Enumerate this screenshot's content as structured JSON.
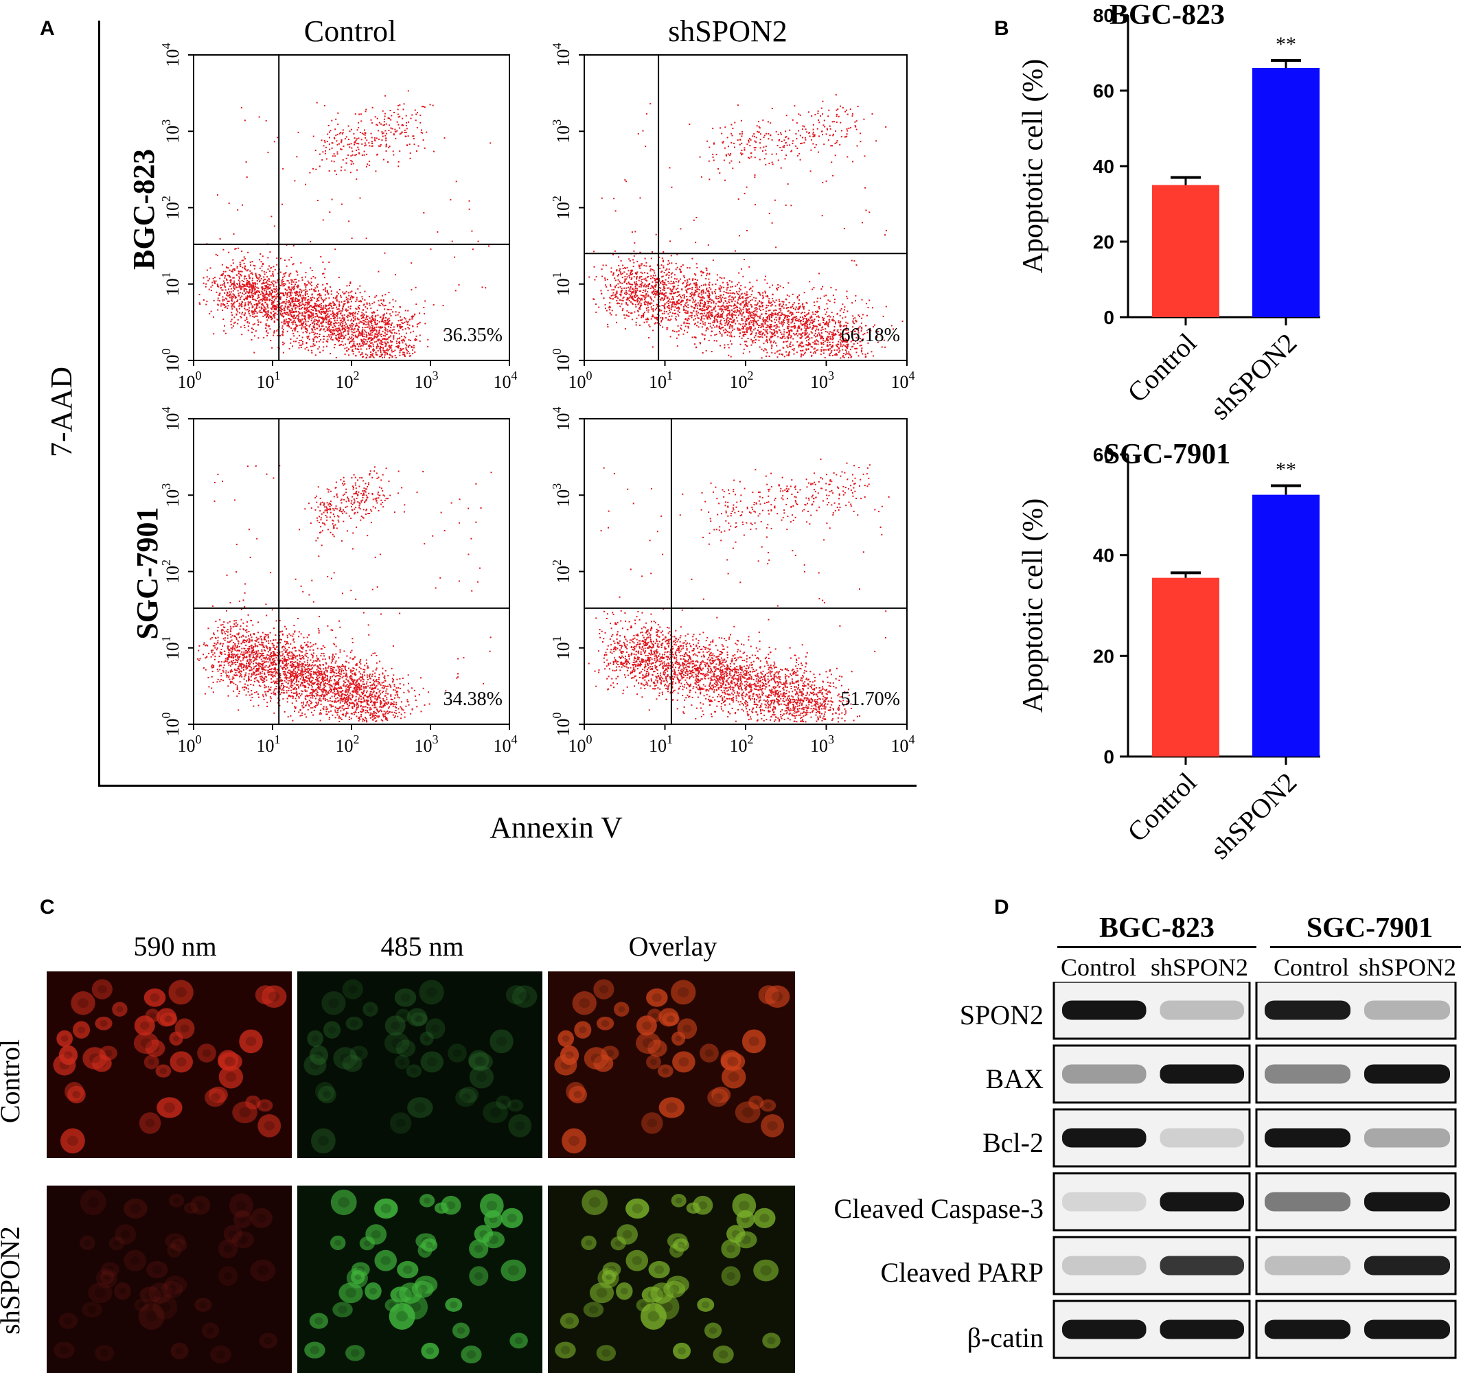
{
  "panels": {
    "a": "A",
    "b": "B",
    "c": "C",
    "d": "D"
  },
  "colors": {
    "control": "#ff3b30",
    "shspon2": "#0a0aff",
    "dots": "#e0141c"
  },
  "flow": {
    "columns": [
      "Control",
      "shSPON2"
    ],
    "rows": [
      "BGC-823",
      "SGC-7901"
    ],
    "y_axis_label": "7-AAD",
    "x_axis_label": "Annexin V",
    "tick_labels": [
      "0",
      "1",
      "2",
      "3",
      "4"
    ],
    "plots": [
      {
        "percent": "36.35%"
      },
      {
        "percent": "66.18%"
      },
      {
        "percent": "34.38%"
      },
      {
        "percent": "51.70%"
      }
    ]
  },
  "chart_data": [
    {
      "type": "bar",
      "title": "BGC-823",
      "xlabel": "",
      "ylabel": "Apoptotic cell (%)",
      "categories": [
        "Control",
        "shSPON2"
      ],
      "values": [
        35,
        66
      ],
      "errors": [
        2,
        2
      ],
      "ylim": [
        0,
        80
      ],
      "yticks": [
        0,
        20,
        40,
        60,
        80
      ],
      "annotations": [
        "",
        "**"
      ]
    },
    {
      "type": "bar",
      "title": "SGC-7901",
      "xlabel": "",
      "ylabel": "Apoptotic cell (%)",
      "categories": [
        "Control",
        "shSPON2"
      ],
      "values": [
        35.5,
        52
      ],
      "errors": [
        1,
        1.8
      ],
      "ylim": [
        0,
        60
      ],
      "yticks": [
        0,
        20,
        40,
        60
      ],
      "annotations": [
        "",
        "**"
      ]
    }
  ],
  "fluorescence": {
    "columns": [
      "590 nm",
      "485 nm",
      "Overlay"
    ],
    "rows": [
      "Control",
      "shSPON2"
    ]
  },
  "western": {
    "cell_lines": [
      "BGC-823",
      "SGC-7901"
    ],
    "lanes": [
      "Control",
      "shSPON2"
    ],
    "proteins": [
      "SPON2",
      "BAX",
      "Bcl-2",
      "Cleaved Caspase-3",
      "Cleaved PARP",
      "β-catin"
    ],
    "band_intensity": [
      [
        0.95,
        0.2,
        0.92,
        0.25
      ],
      [
        0.35,
        0.95,
        0.45,
        0.95
      ],
      [
        0.95,
        0.12,
        0.95,
        0.3
      ],
      [
        0.1,
        0.95,
        0.5,
        0.95
      ],
      [
        0.15,
        0.8,
        0.2,
        0.9
      ],
      [
        0.95,
        0.95,
        0.95,
        0.95
      ]
    ]
  }
}
